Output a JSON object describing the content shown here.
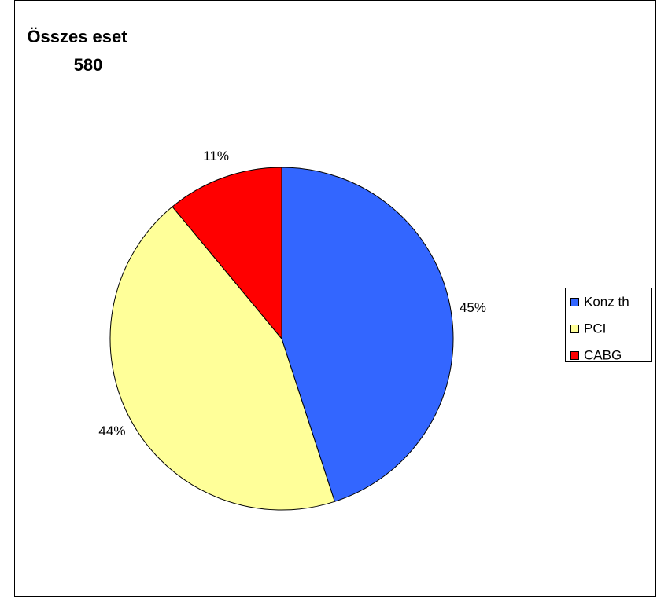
{
  "chart_data": {
    "type": "pie",
    "title": "Összes eset",
    "subtitle": "580",
    "categories": [
      "Konz th",
      "PCI",
      "CABG"
    ],
    "values": [
      45,
      44,
      11
    ],
    "value_labels": [
      "45%",
      "44%",
      "11%"
    ],
    "colors": [
      "#3366ff",
      "#ffff99",
      "#ff0000"
    ],
    "legend": "right"
  }
}
